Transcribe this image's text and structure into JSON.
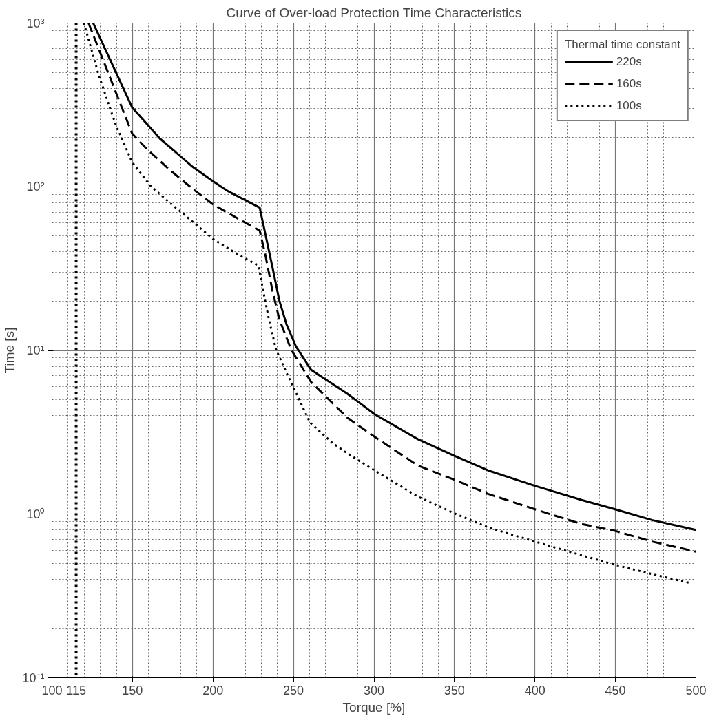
{
  "chart_data": {
    "type": "line",
    "title": "Curve of Over-load Protection Time Characteristics",
    "xlabel": "Torque [%]",
    "ylabel": "Time [s]",
    "legend_title": "Thermal time constant",
    "series": [
      {
        "name": "220s",
        "color": "#000000",
        "line_style": "solid",
        "x": [
          125.6,
          149.8,
          167,
          187.5,
          200,
          209.3,
          229,
          232.6,
          237,
          241.3,
          245.7,
          251.5,
          261,
          283.5,
          300.3,
          327.2,
          350,
          370.8,
          399.9,
          429,
          449.8,
          472.7,
          500
        ],
        "values": [
          1000,
          305,
          197,
          132,
          108,
          94,
          74.5,
          51,
          32,
          20,
          14.4,
          10.6,
          7.6,
          5.43,
          4.08,
          2.87,
          2.27,
          1.85,
          1.49,
          1.22,
          1.07,
          0.92,
          0.8
        ]
      },
      {
        "name": "160s",
        "color": "#000000",
        "line_style": "dashed",
        "x": [
          122.7,
          149.8,
          158.4,
          173,
          187.5,
          200,
          216.6,
          229,
          232.6,
          237,
          241.3,
          248.6,
          261,
          283.5,
          300.3,
          327.2,
          350,
          370.8,
          399.9,
          429,
          449.8,
          472.7,
          500
        ],
        "values": [
          1000,
          211,
          172,
          127,
          97,
          78,
          63,
          54,
          38,
          23,
          15.4,
          10.1,
          6.4,
          3.88,
          2.97,
          1.98,
          1.62,
          1.33,
          1.07,
          0.87,
          0.79,
          0.68,
          0.59
        ]
      },
      {
        "name": "100s",
        "color": "#000000",
        "line_style": "dotted",
        "x": [
          119.8,
          129.3,
          139.5,
          149.8,
          161.3,
          173,
          187.5,
          200,
          216.6,
          228.3,
          231.2,
          234.8,
          239.2,
          245.7,
          260.2,
          274.8,
          283.5,
          300.3,
          327.2,
          350,
          370.8,
          399.9,
          429,
          449.8,
          472.7,
          496
        ],
        "values": [
          1000,
          471,
          241,
          141,
          101,
          80,
          61,
          48,
          38,
          33,
          23,
          15.4,
          10.1,
          7.3,
          3.63,
          2.69,
          2.35,
          1.85,
          1.28,
          1.01,
          0.83,
          0.68,
          0.56,
          0.49,
          0.43,
          0.38
        ]
      }
    ],
    "ref_lines": [
      {
        "axis": "x",
        "value": 115,
        "color": "#000000",
        "line_style": "dotted"
      }
    ],
    "log": "y",
    "xlim": [
      100,
      500
    ],
    "ylim": [
      0.1,
      1000
    ],
    "xticks": [
      100,
      115,
      150,
      200,
      250,
      300,
      350,
      400,
      450,
      500
    ],
    "yticks": [
      {
        "value": 0.1,
        "label": "10⁻¹"
      },
      {
        "value": 1,
        "label": "10⁰"
      },
      {
        "value": 10,
        "label": "10¹"
      },
      {
        "value": 100,
        "label": "10²"
      },
      {
        "value": 1000,
        "label": "10³"
      }
    ],
    "grid": true,
    "legend": "top right",
    "marker": "none"
  }
}
